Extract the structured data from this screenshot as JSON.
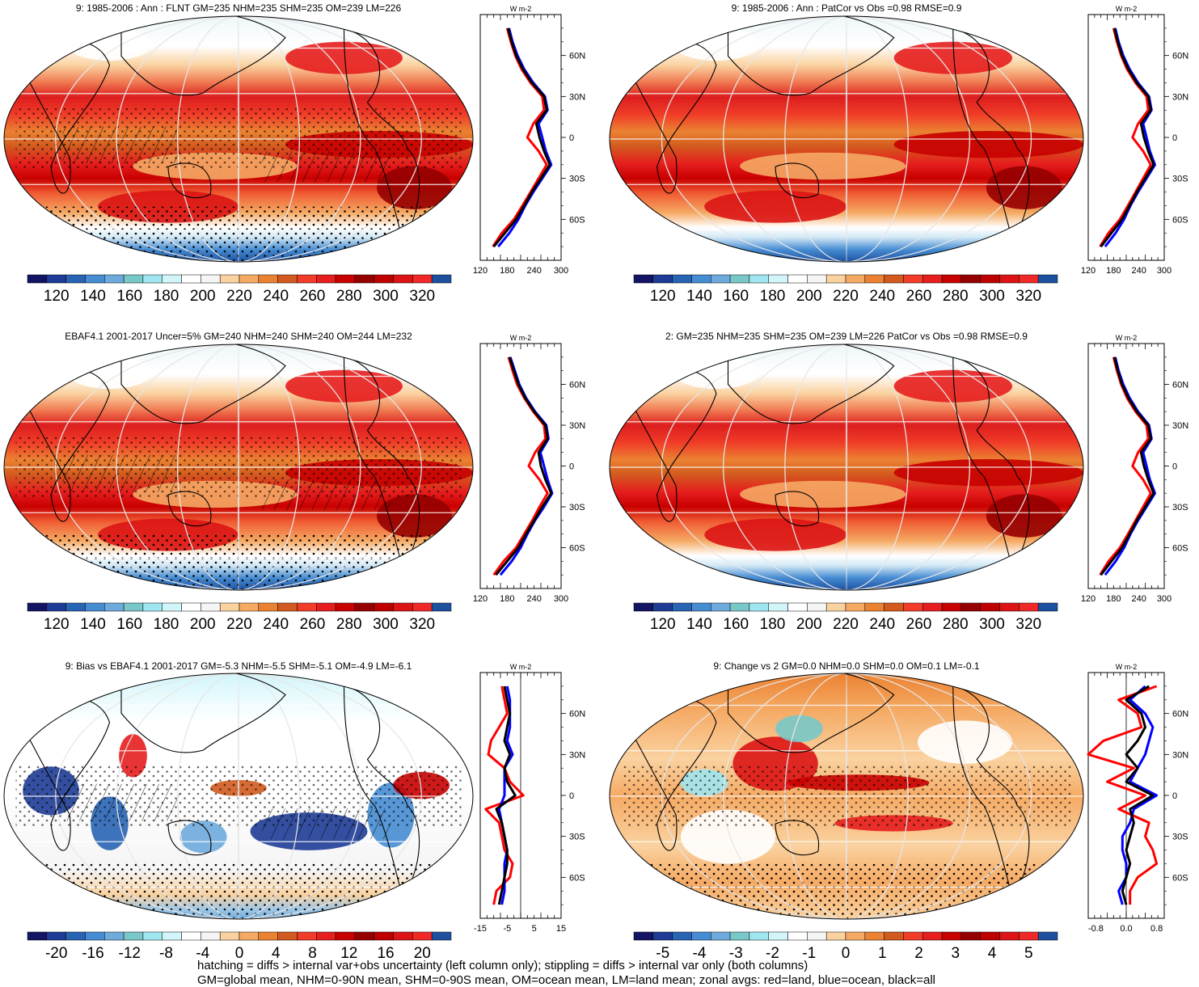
{
  "footer": {
    "line1": "hatching = diffs > internal var+obs uncertainty (left column only); stippling = diffs > internal var only (both columns)",
    "line2": "GM=global mean, NHM=0-90N mean, SHM=0-90S mean, OM=ocean mean, LM=land mean; zonal avgs: red=land, blue=ocean, black=all"
  },
  "colors": {
    "land": "#ff0000",
    "ocean": "#0000ff",
    "all": "#000000"
  },
  "palettes": {
    "abs": [
      "#141464",
      "#1e3c96",
      "#2864b4",
      "#468cd2",
      "#6eaadc",
      "#78c8c8",
      "#a0e6f0",
      "#d2f5fa",
      "#ffffff",
      "#f5f5f5",
      "#fad2a0",
      "#f5aa64",
      "#eb8232",
      "#d25a1e",
      "#f03c28",
      "#e61e1e",
      "#c80000",
      "#960000",
      "#be0000",
      "#dc1414",
      "#f02828",
      "#1e50a0"
    ],
    "bias": [
      "#141464",
      "#1e3c96",
      "#2864b4",
      "#468cd2",
      "#6eaadc",
      "#78c8c8",
      "#a0e6f0",
      "#d2f5fa",
      "#ffffff",
      "#f5f5f5",
      "#fad2a0",
      "#f5aa64",
      "#eb8232",
      "#d25a1e",
      "#f03c28",
      "#e61e1e",
      "#c80000",
      "#960000",
      "#be0000",
      "#dc1414",
      "#f02828",
      "#1e50a0"
    ]
  },
  "chart_data": [
    {
      "type": "heatmap",
      "title": "9: 1985-2006 : Ann : FLNT GM=235 NHM=235 SHM=235 OM=239 LM=226",
      "colorbar_ticks": [
        "120",
        "140",
        "160",
        "180",
        "200",
        "220",
        "240",
        "260",
        "280",
        "300",
        "320"
      ],
      "zonal": {
        "y_ticks": [
          "60N",
          "30N",
          "0",
          "30S",
          "60S"
        ],
        "x_ticks": [
          "120",
          "180",
          "240",
          "300"
        ],
        "unit": "W m-2",
        "xlim": [
          120,
          300
        ],
        "lat": [
          80,
          70,
          60,
          50,
          40,
          30,
          20,
          10,
          0,
          -10,
          -20,
          -30,
          -40,
          -50,
          -60,
          -70,
          -80
        ],
        "all": [
          182,
          190,
          200,
          215,
          235,
          262,
          268,
          245,
          252,
          262,
          275,
          255,
          235,
          218,
          200,
          175,
          150
        ],
        "land": [
          180,
          188,
          198,
          212,
          232,
          258,
          262,
          238,
          225,
          250,
          268,
          250,
          232,
          214,
          195,
          168,
          148
        ],
        "ocean": [
          184,
          192,
          203,
          218,
          238,
          264,
          270,
          250,
          258,
          266,
          278,
          258,
          238,
          220,
          205,
          185,
          160
        ]
      }
    },
    {
      "type": "heatmap",
      "title": "9: 1985-2006 : Ann : PatCor vs Obs =0.98 RMSE=0.9",
      "colorbar_ticks": [
        "120",
        "140",
        "160",
        "180",
        "200",
        "220",
        "240",
        "260",
        "280",
        "300",
        "320"
      ],
      "zonal": {
        "y_ticks": [
          "60N",
          "30N",
          "0",
          "30S",
          "60S"
        ],
        "x_ticks": [
          "120",
          "180",
          "240",
          "300"
        ],
        "unit": "W m-2",
        "xlim": [
          120,
          300
        ],
        "lat": [
          80,
          70,
          60,
          50,
          40,
          30,
          20,
          10,
          0,
          -10,
          -20,
          -30,
          -40,
          -50,
          -60,
          -70,
          -80
        ],
        "all": [
          182,
          190,
          200,
          215,
          235,
          262,
          268,
          245,
          252,
          262,
          275,
          255,
          235,
          218,
          200,
          175,
          150
        ],
        "land": [
          180,
          188,
          198,
          212,
          232,
          258,
          262,
          238,
          225,
          250,
          268,
          250,
          232,
          214,
          195,
          168,
          148
        ],
        "ocean": [
          184,
          192,
          203,
          218,
          238,
          264,
          270,
          250,
          258,
          266,
          278,
          258,
          238,
          220,
          205,
          185,
          160
        ]
      }
    },
    {
      "type": "heatmap",
      "title": "EBAF4.1 2001-2017 Uncer=5% GM=240 NHM=240 SHM=240 OM=244 LM=232",
      "colorbar_ticks": [
        "120",
        "140",
        "160",
        "180",
        "200",
        "220",
        "240",
        "260",
        "280",
        "300",
        "320"
      ],
      "zonal": {
        "y_ticks": [
          "60N",
          "30N",
          "0",
          "30S",
          "60S"
        ],
        "x_ticks": [
          "120",
          "180",
          "240",
          "300"
        ],
        "unit": "W m-2",
        "xlim": [
          120,
          300
        ],
        "lat": [
          80,
          70,
          60,
          50,
          40,
          30,
          20,
          10,
          0,
          -10,
          -20,
          -30,
          -40,
          -50,
          -60,
          -70,
          -80
        ],
        "all": [
          185,
          195,
          205,
          220,
          240,
          265,
          270,
          250,
          255,
          265,
          278,
          258,
          240,
          222,
          205,
          180,
          155
        ],
        "land": [
          183,
          192,
          202,
          218,
          238,
          262,
          265,
          242,
          228,
          252,
          270,
          252,
          236,
          218,
          200,
          172,
          150
        ],
        "ocean": [
          187,
          197,
          207,
          222,
          242,
          267,
          272,
          254,
          262,
          270,
          280,
          262,
          242,
          225,
          210,
          190,
          165
        ]
      }
    },
    {
      "type": "heatmap",
      "title": "2: GM=235 NHM=235 SHM=235 OM=239 LM=226 PatCor vs Obs =0.98 RMSE=0.9",
      "colorbar_ticks": [
        "120",
        "140",
        "160",
        "180",
        "200",
        "220",
        "240",
        "260",
        "280",
        "300",
        "320"
      ],
      "zonal": {
        "y_ticks": [
          "60N",
          "30N",
          "0",
          "30S",
          "60S"
        ],
        "x_ticks": [
          "120",
          "180",
          "240",
          "300"
        ],
        "unit": "W m-2",
        "xlim": [
          120,
          300
        ],
        "lat": [
          80,
          70,
          60,
          50,
          40,
          30,
          20,
          10,
          0,
          -10,
          -20,
          -30,
          -40,
          -50,
          -60,
          -70,
          -80
        ],
        "all": [
          182,
          190,
          200,
          215,
          235,
          262,
          268,
          245,
          252,
          262,
          275,
          255,
          235,
          218,
          200,
          175,
          150
        ],
        "land": [
          180,
          188,
          198,
          212,
          232,
          258,
          262,
          238,
          225,
          250,
          268,
          250,
          232,
          214,
          195,
          168,
          148
        ],
        "ocean": [
          184,
          192,
          203,
          218,
          238,
          264,
          270,
          250,
          258,
          266,
          278,
          258,
          238,
          220,
          205,
          185,
          160
        ]
      }
    },
    {
      "type": "heatmap",
      "title": "9: Bias vs EBAF4.1 2001-2017 GM=-5.3 NHM=-5.5 SHM=-5.1 OM=-4.9 LM=-6.1",
      "colorbar_ticks": [
        "-20",
        "-16",
        "-12",
        "-8",
        "-4",
        "0",
        "4",
        "8",
        "12",
        "16",
        "20"
      ],
      "zonal": {
        "y_ticks": [
          "60N",
          "30N",
          "0",
          "30S",
          "60S"
        ],
        "x_ticks": [
          "-15",
          "-5",
          "5",
          "15"
        ],
        "unit": "W m-2",
        "xlim": [
          -15,
          15
        ],
        "lat": [
          80,
          70,
          60,
          50,
          40,
          30,
          20,
          10,
          0,
          -10,
          -20,
          -30,
          -40,
          -50,
          -60,
          -70,
          -80
        ],
        "all": [
          -6,
          -5,
          -4,
          -5,
          -6,
          -4,
          -6,
          -5,
          -2,
          -9,
          -7,
          -6,
          -5,
          -5,
          -6,
          -7,
          -8
        ],
        "land": [
          -7,
          -6,
          -5,
          -8,
          -11,
          -12,
          -6,
          -4,
          1,
          -13,
          -8,
          -7,
          -6,
          -3,
          -4,
          -9,
          -10
        ],
        "ocean": [
          -5,
          -4,
          -4,
          -4,
          -5,
          -3,
          -6,
          -6,
          -6,
          -8,
          -7,
          -6,
          -5,
          -6,
          -6,
          -6,
          -7
        ]
      }
    },
    {
      "type": "heatmap",
      "title": "9: Change vs 2 GM=0.0 NHM=0.0 SHM=0.0 OM=0.1 LM=-0.1",
      "colorbar_ticks": [
        "-5",
        "-4",
        "-3",
        "-2",
        "-1",
        "0",
        "1",
        "2",
        "3",
        "4",
        "5"
      ],
      "zonal": {
        "y_ticks": [
          "60N",
          "30N",
          "0",
          "30S",
          "60S"
        ],
        "x_ticks": [
          "-0.8",
          "0.0",
          "0.8"
        ],
        "unit": "W m-2",
        "xlim": [
          -1.0,
          1.0
        ],
        "lat": [
          80,
          70,
          60,
          50,
          40,
          30,
          20,
          10,
          0,
          -10,
          -20,
          -30,
          -40,
          -50,
          -60,
          -70,
          -80
        ],
        "all": [
          0.6,
          0.0,
          0.4,
          0.5,
          0.3,
          0.0,
          0.3,
          0.0,
          0.7,
          0.1,
          0.2,
          0.1,
          0.0,
          0.1,
          0.0,
          -0.1,
          0.0
        ],
        "land": [
          0.8,
          -0.2,
          0.3,
          0.4,
          -0.6,
          -1.0,
          0.2,
          -0.5,
          0.5,
          -0.2,
          0.6,
          0.5,
          0.7,
          0.8,
          0.3,
          0.1,
          0.1
        ],
        "ocean": [
          0.5,
          0.1,
          0.5,
          0.7,
          0.6,
          0.5,
          0.3,
          0.1,
          0.8,
          0.2,
          0.1,
          -0.1,
          -0.1,
          0.0,
          0.0,
          -0.2,
          -0.1
        ]
      }
    }
  ]
}
